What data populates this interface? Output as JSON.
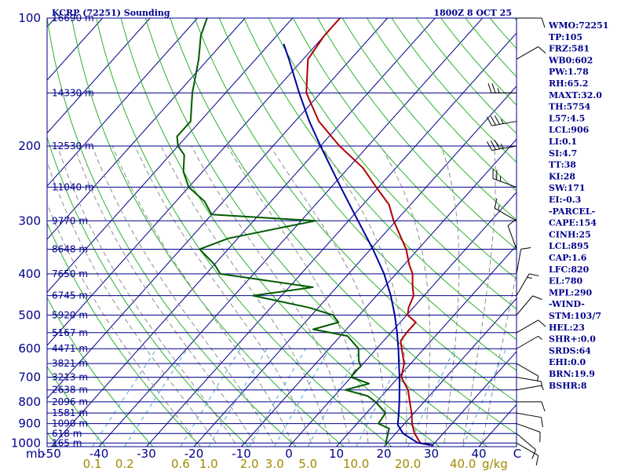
{
  "chart_data": {
    "type": "skew-t",
    "station_title": "KCRP (72251) Sounding",
    "valid_time": "1800Z  8 OCT 25",
    "pressure_axis": {
      "unit_label": "mb",
      "ticks": [
        {
          "p": 100,
          "label": "100"
        },
        {
          "p": 200,
          "label": "200"
        },
        {
          "p": 300,
          "label": "300"
        },
        {
          "p": 400,
          "label": "400"
        },
        {
          "p": 500,
          "label": "500"
        },
        {
          "p": 600,
          "label": "600"
        },
        {
          "p": 700,
          "label": "700"
        },
        {
          "p": 800,
          "label": "800"
        },
        {
          "p": 900,
          "label": "900"
        },
        {
          "p": 1000,
          "label": "1000"
        }
      ],
      "range": [
        100,
        1020
      ]
    },
    "temperature_axis": {
      "labels": [
        "-50",
        "-40",
        "-30",
        "-20",
        "-10",
        "0",
        "10",
        "20",
        "30",
        "40"
      ],
      "values": [
        -50,
        -40,
        -30,
        -20,
        -10,
        0,
        10,
        20,
        30,
        40
      ],
      "end_label": "C"
    },
    "mixing_ratio_axis": {
      "labels": [
        "0.1",
        "0.2",
        "0.6",
        "1.0",
        "2.0",
        "3.0",
        "5.0",
        "10.0",
        "20.0",
        "40.0"
      ],
      "values": [
        0.1,
        0.2,
        0.6,
        1.0,
        2.0,
        3.0,
        5.0,
        10.0,
        20.0,
        40.0
      ],
      "unit": "g/kg"
    },
    "height_levels": [
      {
        "p": 100,
        "label": "16690 m"
      },
      {
        "p": 150,
        "label": "14330 m"
      },
      {
        "p": 200,
        "label": "12530 m"
      },
      {
        "p": 250,
        "label": "11040 m"
      },
      {
        "p": 300,
        "label": "9770 m"
      },
      {
        "p": 350,
        "label": "8648 m"
      },
      {
        "p": 400,
        "label": "7650 m"
      },
      {
        "p": 450,
        "label": "6745 m"
      },
      {
        "p": 500,
        "label": "5920 m"
      },
      {
        "p": 550,
        "label": "5167 m"
      },
      {
        "p": 600,
        "label": "4471 m"
      },
      {
        "p": 650,
        "label": "3821 m"
      },
      {
        "p": 700,
        "label": "3213 m"
      },
      {
        "p": 750,
        "label": "2638 m"
      },
      {
        "p": 800,
        "label": "2096 m"
      },
      {
        "p": 850,
        "label": "1581 m"
      },
      {
        "p": 900,
        "label": "1090 m"
      },
      {
        "p": 950,
        "label": "618 m"
      },
      {
        "p": 1000,
        "label": "165 m"
      }
    ],
    "series": [
      {
        "name": "temperature",
        "color": "#b00000",
        "points": [
          [
            1012,
            29.5
          ],
          [
            1000,
            27
          ],
          [
            950,
            24
          ],
          [
            925,
            22.8
          ],
          [
            900,
            21.6
          ],
          [
            850,
            19.5
          ],
          [
            800,
            17
          ],
          [
            750,
            14.4
          ],
          [
            700,
            10.6
          ],
          [
            650,
            8.6
          ],
          [
            600,
            5.3
          ],
          [
            575,
            3.6
          ],
          [
            550,
            3.3
          ],
          [
            520,
            3.3
          ],
          [
            500,
            0.2
          ],
          [
            480,
            -1
          ],
          [
            450,
            -2.2
          ],
          [
            430,
            -4
          ],
          [
            400,
            -6.5
          ],
          [
            380,
            -9
          ],
          [
            350,
            -12.5
          ],
          [
            300,
            -20.5
          ],
          [
            275,
            -24.5
          ],
          [
            250,
            -30.5
          ],
          [
            225,
            -37
          ],
          [
            200,
            -46
          ],
          [
            175,
            -55
          ],
          [
            150,
            -63
          ],
          [
            125,
            -69
          ],
          [
            110,
            -70
          ],
          [
            100,
            -70
          ]
        ]
      },
      {
        "name": "dewpoint",
        "color": "#005a00",
        "points": [
          [
            1012,
            20.3
          ],
          [
            1000,
            19.7
          ],
          [
            950,
            18.4
          ],
          [
            925,
            17.7
          ],
          [
            900,
            14.5
          ],
          [
            850,
            14
          ],
          [
            800,
            9.8
          ],
          [
            775,
            7
          ],
          [
            750,
            1.2
          ],
          [
            725,
            5
          ],
          [
            700,
            0
          ],
          [
            680,
            -0.3
          ],
          [
            660,
            0
          ],
          [
            640,
            -1.5
          ],
          [
            600,
            -3.8
          ],
          [
            560,
            -8.5
          ],
          [
            540,
            -17
          ],
          [
            520,
            -13
          ],
          [
            500,
            -15.5
          ],
          [
            480,
            -22
          ],
          [
            450,
            -36
          ],
          [
            430,
            -25
          ],
          [
            400,
            -47
          ],
          [
            380,
            -50
          ],
          [
            350,
            -56
          ],
          [
            330,
            -52
          ],
          [
            300,
            -37
          ],
          [
            290,
            -60
          ],
          [
            270,
            -64
          ],
          [
            250,
            -70
          ],
          [
            230,
            -74
          ],
          [
            210,
            -77
          ],
          [
            200,
            -80
          ],
          [
            190,
            -82
          ],
          [
            175,
            -82
          ],
          [
            150,
            -87
          ],
          [
            125,
            -92
          ],
          [
            110,
            -96
          ],
          [
            100,
            -98
          ]
        ]
      },
      {
        "name": "parcel",
        "color": "#0000a0",
        "points": [
          [
            1012,
            30.2
          ],
          [
            1000,
            26.5
          ],
          [
            950,
            21.6
          ],
          [
            906,
            18.8
          ],
          [
            850,
            16.8
          ],
          [
            800,
            14.8
          ],
          [
            750,
            12.6
          ],
          [
            700,
            10.2
          ],
          [
            650,
            7.5
          ],
          [
            600,
            4.6
          ],
          [
            550,
            1.3
          ],
          [
            500,
            -2.5
          ],
          [
            450,
            -7
          ],
          [
            400,
            -12.5
          ],
          [
            350,
            -19.5
          ],
          [
            300,
            -28
          ],
          [
            250,
            -38
          ],
          [
            200,
            -50
          ],
          [
            175,
            -57
          ],
          [
            150,
            -64.5
          ],
          [
            125,
            -73
          ],
          [
            115,
            -77
          ]
        ]
      }
    ],
    "indices": [
      "WMO:72251",
      "TP:105",
      "FRZ:581",
      "WB0:602",
      "PW:1.78",
      "RH:65.2",
      "MAXT:32.0",
      "TH:5754",
      "L57:4.5",
      "LCL:906",
      "LI:0.1",
      "SI:4.7",
      "TT:38",
      "KI:28",
      "SW:171",
      "EI:-0.3",
      "-PARCEL-",
      "CAPE:154",
      "CINH:25",
      "LCL:895",
      "CAP:1.6",
      "LFC:820",
      "EL:780",
      "MPL:290",
      "-WIND-",
      "STM:103/7",
      "HEL:23",
      "SHR+:0.0",
      "SRDS:64",
      "EHI:0.0",
      "BRN:19.9",
      "BSHR:8"
    ],
    "wind_barbs": [
      {
        "p": 1000,
        "dir": 120,
        "spd": 10
      },
      {
        "p": 950,
        "dir": 130,
        "spd": 10
      },
      {
        "p": 900,
        "dir": 110,
        "spd": 10
      },
      {
        "p": 850,
        "dir": 100,
        "spd": 10
      },
      {
        "p": 800,
        "dir": 90,
        "spd": 10
      },
      {
        "p": 750,
        "dir": 80,
        "spd": 5
      },
      {
        "p": 700,
        "dir": 100,
        "spd": 5
      },
      {
        "p": 650,
        "dir": 120,
        "spd": 5
      },
      {
        "p": 600,
        "dir": 60,
        "spd": 5
      },
      {
        "p": 550,
        "dir": 60,
        "spd": 10
      },
      {
        "p": 500,
        "dir": 40,
        "spd": 10
      },
      {
        "p": 450,
        "dir": 30,
        "spd": 15
      },
      {
        "p": 400,
        "dir": 10,
        "spd": 10
      },
      {
        "p": 350,
        "dir": 340,
        "spd": 10
      },
      {
        "p": 300,
        "dir": 300,
        "spd": 15
      },
      {
        "p": 250,
        "dir": 290,
        "spd": 25
      },
      {
        "p": 200,
        "dir": 260,
        "spd": 35
      },
      {
        "p": 175,
        "dir": 260,
        "spd": 35
      },
      {
        "p": 150,
        "dir": 270,
        "spd": 25
      },
      {
        "p": 125,
        "dir": 60,
        "spd": 10
      },
      {
        "p": 100,
        "dir": 90,
        "spd": 10
      }
    ],
    "colors": {
      "frame": "#00008b",
      "isotherm": "#00008b",
      "dry_adiabat": "#2db22d",
      "moist_adiabat": "#8c8c8c",
      "mixing_ratio": "#4aa8d8",
      "barb": "#000000"
    }
  }
}
